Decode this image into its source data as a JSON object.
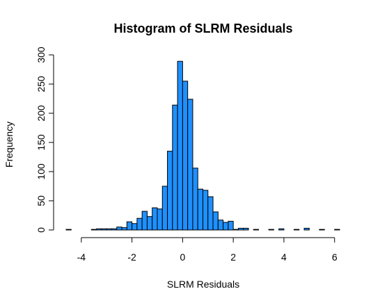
{
  "chart_data": {
    "type": "bar",
    "title": "Histogram of SLRM Residuals",
    "xlabel": "SLRM Residuals",
    "ylabel": "Frequency",
    "bar_color": "#1E90FF",
    "bar_border_color": "#000000",
    "xlim": [
      -4.6,
      6.2
    ],
    "ylim": [
      0,
      300
    ],
    "bin_width": 0.2,
    "x_ticks": [
      -4,
      -2,
      0,
      2,
      4,
      6
    ],
    "y_ticks": [
      0,
      50,
      100,
      150,
      200,
      250,
      300
    ],
    "grid": false,
    "bins": [
      {
        "start": -4.6,
        "value": 1
      },
      {
        "start": -4.4,
        "value": 0
      },
      {
        "start": -4.2,
        "value": 0
      },
      {
        "start": -4.0,
        "value": 0
      },
      {
        "start": -3.8,
        "value": 0
      },
      {
        "start": -3.6,
        "value": 1
      },
      {
        "start": -3.4,
        "value": 2
      },
      {
        "start": -3.2,
        "value": 2
      },
      {
        "start": -3.0,
        "value": 2
      },
      {
        "start": -2.8,
        "value": 2
      },
      {
        "start": -2.6,
        "value": 5
      },
      {
        "start": -2.4,
        "value": 4
      },
      {
        "start": -2.2,
        "value": 14
      },
      {
        "start": -2.0,
        "value": 11
      },
      {
        "start": -1.8,
        "value": 20
      },
      {
        "start": -1.6,
        "value": 32
      },
      {
        "start": -1.4,
        "value": 23
      },
      {
        "start": -1.2,
        "value": 38
      },
      {
        "start": -1.0,
        "value": 36
      },
      {
        "start": -0.8,
        "value": 75
      },
      {
        "start": -0.6,
        "value": 135
      },
      {
        "start": -0.4,
        "value": 214
      },
      {
        "start": -0.2,
        "value": 289
      },
      {
        "start": 0.0,
        "value": 255
      },
      {
        "start": 0.2,
        "value": 224
      },
      {
        "start": 0.4,
        "value": 106
      },
      {
        "start": 0.6,
        "value": 70
      },
      {
        "start": 0.8,
        "value": 68
      },
      {
        "start": 1.0,
        "value": 57
      },
      {
        "start": 1.2,
        "value": 31
      },
      {
        "start": 1.4,
        "value": 17
      },
      {
        "start": 1.6,
        "value": 13
      },
      {
        "start": 1.8,
        "value": 15
      },
      {
        "start": 2.0,
        "value": 1
      },
      {
        "start": 2.2,
        "value": 3
      },
      {
        "start": 2.4,
        "value": 3
      },
      {
        "start": 2.6,
        "value": 0
      },
      {
        "start": 2.8,
        "value": 1
      },
      {
        "start": 3.0,
        "value": 0
      },
      {
        "start": 3.2,
        "value": 0
      },
      {
        "start": 3.4,
        "value": 1
      },
      {
        "start": 3.6,
        "value": 0
      },
      {
        "start": 3.8,
        "value": 2
      },
      {
        "start": 4.0,
        "value": 0
      },
      {
        "start": 4.2,
        "value": 0
      },
      {
        "start": 4.4,
        "value": 1
      },
      {
        "start": 4.6,
        "value": 0
      },
      {
        "start": 4.8,
        "value": 3
      },
      {
        "start": 5.0,
        "value": 0
      },
      {
        "start": 5.2,
        "value": 0
      },
      {
        "start": 5.4,
        "value": 1
      },
      {
        "start": 5.6,
        "value": 0
      },
      {
        "start": 5.8,
        "value": 0
      },
      {
        "start": 6.0,
        "value": 1
      }
    ]
  }
}
